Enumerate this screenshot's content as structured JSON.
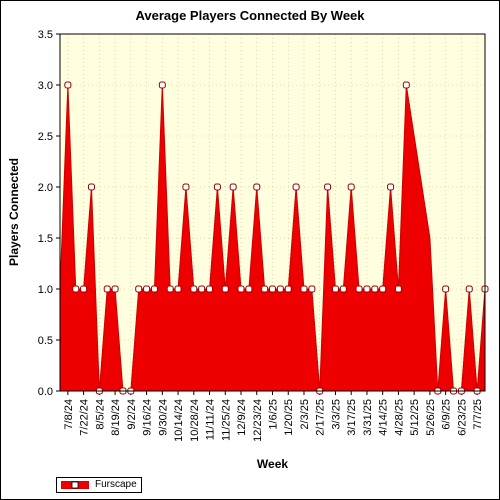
{
  "chart_data": {
    "type": "area",
    "title": "Average Players Connected By Week",
    "xlabel": "Week",
    "ylabel": "Players Connected",
    "ylim": [
      0,
      3.5
    ],
    "yticks": [
      "0.0",
      "0.5",
      "1.0",
      "1.5",
      "2.0",
      "2.5",
      "3.0",
      "3.5"
    ],
    "xtick_labels": [
      "7/8/24",
      "7/22/24",
      "8/5/24",
      "8/19/24",
      "9/2/24",
      "9/16/24",
      "9/30/24",
      "10/14/24",
      "10/28/24",
      "11/11/24",
      "11/25/24",
      "12/9/24",
      "12/23/24",
      "1/6/25",
      "1/20/25",
      "2/3/25",
      "2/17/25",
      "3/3/25",
      "3/17/25",
      "3/31/25",
      "4/14/25",
      "4/28/25",
      "5/12/25",
      "5/26/25",
      "6/9/25",
      "6/23/25",
      "7/7/25"
    ],
    "grid": true,
    "legend": "bottom-left",
    "colors": {
      "fill": "#ee0000",
      "line": "#cc0000",
      "plot_bg": "#ffffe0",
      "grid": "#bfbf9f"
    },
    "series": [
      {
        "name": "Furscape",
        "x": [
          "7/1/24",
          "7/8/24",
          "7/15/24",
          "7/22/24",
          "7/29/24",
          "8/5/24",
          "8/12/24",
          "8/19/24",
          "8/26/24",
          "9/2/24",
          "9/9/24",
          "9/16/24",
          "9/23/24",
          "9/30/24",
          "10/7/24",
          "10/14/24",
          "10/21/24",
          "10/28/24",
          "11/4/24",
          "11/11/24",
          "11/18/24",
          "11/25/24",
          "12/2/24",
          "12/9/24",
          "12/16/24",
          "12/23/24",
          "12/30/24",
          "1/6/25",
          "1/13/25",
          "1/20/25",
          "1/27/25",
          "2/3/25",
          "2/10/25",
          "2/17/25",
          "2/24/25",
          "3/3/25",
          "3/10/25",
          "3/17/25",
          "3/24/25",
          "3/31/25",
          "4/7/25",
          "4/14/25",
          "4/21/25",
          "4/28/25",
          "5/5/25",
          "5/12/25",
          "5/19/25",
          "5/26/25",
          "6/2/25",
          "6/9/25",
          "6/16/25",
          "6/23/25",
          "6/30/25",
          "7/7/25",
          "7/14/25"
        ],
        "values": [
          1,
          3,
          1,
          1,
          2,
          0,
          1,
          1,
          0,
          0,
          1,
          1,
          1,
          3,
          1,
          1,
          2,
          1,
          1,
          1,
          2,
          1,
          2,
          1,
          1,
          2,
          1,
          1,
          1,
          1,
          2,
          1,
          1,
          0,
          2,
          1,
          1,
          2,
          1,
          1,
          1,
          1,
          2,
          1,
          3,
          2.5,
          2,
          1.5,
          0,
          1,
          0,
          0,
          1,
          0,
          1
        ],
        "markers": [
          false,
          true,
          true,
          true,
          true,
          true,
          true,
          true,
          true,
          true,
          true,
          true,
          true,
          true,
          true,
          true,
          true,
          true,
          true,
          true,
          true,
          true,
          true,
          true,
          true,
          true,
          true,
          true,
          true,
          true,
          true,
          true,
          true,
          true,
          true,
          true,
          true,
          true,
          true,
          true,
          true,
          true,
          true,
          true,
          true,
          false,
          false,
          false,
          true,
          true,
          true,
          true,
          true,
          true,
          true
        ]
      }
    ]
  }
}
